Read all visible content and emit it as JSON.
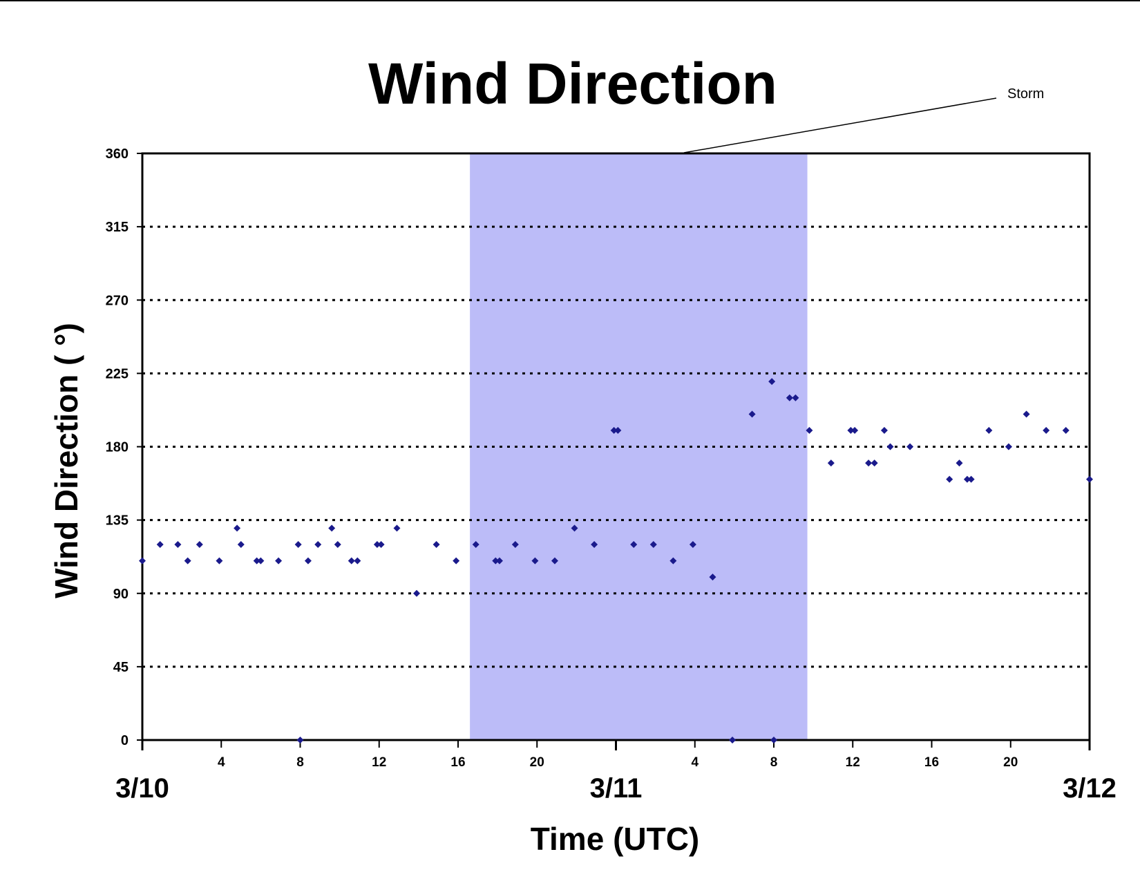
{
  "chart_data": {
    "type": "scatter",
    "title": "Wind Direction",
    "ylabel": "Wind Direction ( °)",
    "xlabel": "Time (UTC)",
    "ylim": [
      0,
      360
    ],
    "yticks": [
      0,
      45,
      90,
      135,
      180,
      225,
      270,
      315,
      360
    ],
    "xlim_hours": [
      0,
      48
    ],
    "hour_ticks": [
      {
        "hour": 4,
        "label": "4"
      },
      {
        "hour": 8,
        "label": "8"
      },
      {
        "hour": 12,
        "label": "12"
      },
      {
        "hour": 16,
        "label": "16"
      },
      {
        "hour": 20,
        "label": "20"
      },
      {
        "hour": 28,
        "label": "4"
      },
      {
        "hour": 32,
        "label": "8"
      },
      {
        "hour": 36,
        "label": "12"
      },
      {
        "hour": 40,
        "label": "16"
      },
      {
        "hour": 44,
        "label": "20"
      }
    ],
    "date_labels": [
      {
        "hour": 0,
        "label": "3/10"
      },
      {
        "hour": 24,
        "label": "3/11"
      },
      {
        "hour": 48,
        "label": "3/12"
      }
    ],
    "grid": "horizontal dotted",
    "marker_color": "#1a1a8c",
    "shaded_region": {
      "start_hour": 16.6,
      "end_hour": 33.7,
      "color": "#bcbcf8",
      "label": "Storm"
    },
    "series": [
      {
        "points": [
          [
            0,
            110
          ],
          [
            0.9,
            120
          ],
          [
            1.8,
            120
          ],
          [
            2.3,
            110
          ],
          [
            2.9,
            120
          ],
          [
            3.9,
            110
          ],
          [
            4.8,
            130
          ],
          [
            5,
            120
          ],
          [
            5.8,
            110
          ],
          [
            6,
            110
          ],
          [
            6.9,
            110
          ],
          [
            7.9,
            120
          ],
          [
            8,
            0
          ],
          [
            8.4,
            110
          ],
          [
            8.9,
            120
          ],
          [
            9.6,
            130
          ],
          [
            9.9,
            120
          ],
          [
            10.6,
            110
          ],
          [
            10.9,
            110
          ],
          [
            11.9,
            120
          ],
          [
            12.1,
            120
          ],
          [
            12.9,
            130
          ],
          [
            13.9,
            90
          ],
          [
            14.9,
            120
          ],
          [
            15.9,
            110
          ],
          [
            16.9,
            120
          ],
          [
            17.9,
            110
          ],
          [
            18.1,
            110
          ],
          [
            18.9,
            120
          ],
          [
            19.9,
            110
          ],
          [
            20.9,
            110
          ],
          [
            21.9,
            130
          ],
          [
            22.9,
            120
          ],
          [
            23.9,
            190
          ],
          [
            24.1,
            190
          ],
          [
            24.9,
            120
          ],
          [
            25.9,
            120
          ],
          [
            26.9,
            110
          ],
          [
            27.9,
            120
          ],
          [
            28.9,
            100
          ],
          [
            29.9,
            0
          ],
          [
            30.9,
            200
          ],
          [
            31.9,
            220
          ],
          [
            32,
            0
          ],
          [
            32.8,
            210
          ],
          [
            33.1,
            210
          ],
          [
            33.8,
            190
          ],
          [
            34.9,
            170
          ],
          [
            35.9,
            190
          ],
          [
            36.1,
            190
          ],
          [
            36.8,
            170
          ],
          [
            37.1,
            170
          ],
          [
            37.6,
            190
          ],
          [
            37.9,
            180
          ],
          [
            38.9,
            180
          ],
          [
            40.9,
            160
          ],
          [
            41.4,
            170
          ],
          [
            41.8,
            160
          ],
          [
            42,
            160
          ],
          [
            42.9,
            190
          ],
          [
            43.9,
            180
          ],
          [
            44.8,
            200
          ],
          [
            45.8,
            190
          ],
          [
            46.8,
            190
          ],
          [
            48,
            160
          ]
        ]
      }
    ]
  }
}
